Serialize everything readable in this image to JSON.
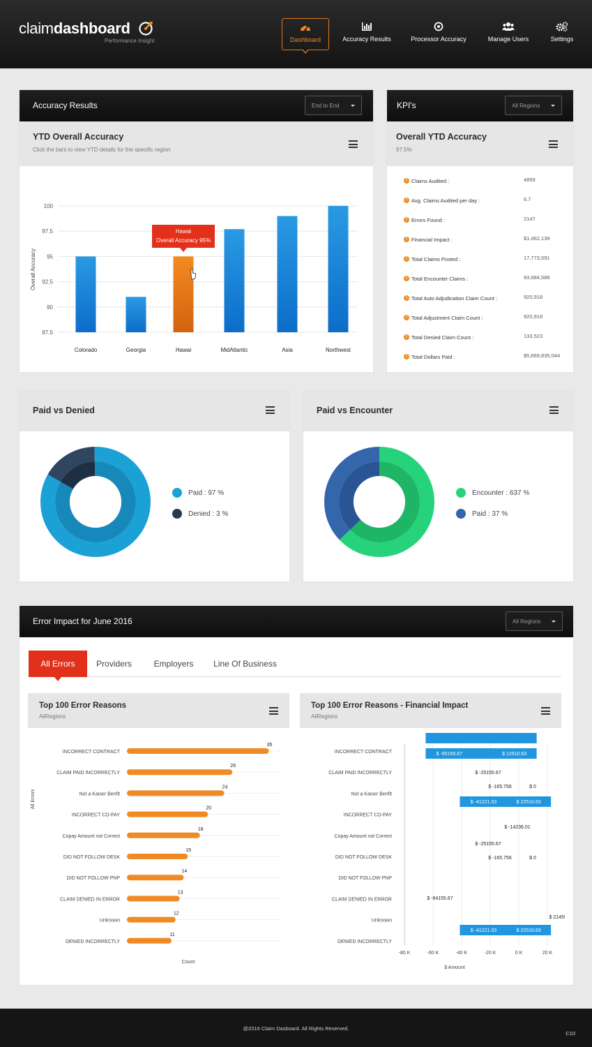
{
  "header": {
    "logo_light": "claim",
    "logo_bold": "dashboard",
    "logo_sub": "Performance Insight",
    "nav": [
      {
        "label": "Dashboard",
        "icon": "speedometer-icon",
        "active": true
      },
      {
        "label": "Accuracy Results",
        "icon": "bar-chart-icon"
      },
      {
        "label": "Processor Accuracy",
        "icon": "target-icon"
      },
      {
        "label": "Manage Users",
        "icon": "users-icon"
      },
      {
        "label": "Settings",
        "icon": "gears-icon"
      }
    ]
  },
  "accuracy": {
    "panel_title": "Accuracy Results",
    "filter": "End to End",
    "chart_title": "YTD Overall Accuracy",
    "chart_desc": "Click the bars to view YTD details for the specific region",
    "tooltip_line1": "Hawai",
    "tooltip_line2": "Overall Accuracy 95%"
  },
  "kpi": {
    "panel_title": "KPI's",
    "filter": "All Regions",
    "title": "Overall YTD Accuracy",
    "subtitle": "97.5%",
    "rows": [
      {
        "label": "Claims Audited :",
        "value": "4859"
      },
      {
        "label": "Avg. Claims Audited per day :",
        "value": "6.7"
      },
      {
        "label": "Errors Found :",
        "value": "2147"
      },
      {
        "label": "Financial Impact :",
        "value": "$1,462,139"
      },
      {
        "label": "Total Claims Posted :",
        "value": "17,773,591"
      },
      {
        "label": "Total Encounter Claims :",
        "value": "93,984,586"
      },
      {
        "label": "Total Auto Adjudication Claim Count :",
        "value": "920,918"
      },
      {
        "label": "Total Adjustment Claim Count :",
        "value": "920,918"
      },
      {
        "label": "Total Denied Claim Count :",
        "value": "133,523"
      },
      {
        "label": "Total Dollars Paid :",
        "value": "$5,669,835,044"
      }
    ]
  },
  "paid_denied": {
    "title": "Paid vs Denied",
    "legend": [
      {
        "label": "Paid : 97 %",
        "color": "#1ba1d6"
      },
      {
        "label": "Denied : 3 %",
        "color": "#263a52"
      }
    ]
  },
  "paid_encounter": {
    "title": "Paid vs Encounter",
    "legend": [
      {
        "label": "Encounter : 637 %",
        "color": "#27d37a"
      },
      {
        "label": "Paid : 37 %",
        "color": "#3466ab"
      }
    ]
  },
  "error_impact": {
    "panel_title": "Error Impact for June 2016",
    "filter": "All Regions",
    "tabs": [
      "All Errors",
      "Providers",
      "Employers",
      "Line Of Business"
    ],
    "left_title": "Top 100 Error Reasons",
    "left_sub": "AllRegions",
    "right_title": "Top 100 Error Reasons - Financial Impact",
    "right_sub": "AllRegions"
  },
  "footer": {
    "copyright": "@2016 Claim Dasboard. All Rights Reserved.",
    "code": "C10"
  },
  "chart_data": [
    {
      "type": "bar",
      "title": "YTD Overall Accuracy",
      "ylabel": "Overall Accuracy",
      "categories": [
        "Colorado",
        "Georgia",
        "Hawai",
        "MidAtlantic",
        "Asia",
        "Northwest"
      ],
      "values": [
        95,
        91,
        95,
        97.7,
        99,
        100
      ],
      "ylim": [
        87.5,
        100
      ],
      "yticks": [
        "87.5",
        "90",
        "92.5",
        "95",
        "97.5",
        "100"
      ],
      "highlight": "Hawai",
      "grid": true
    },
    {
      "type": "pie",
      "title": "Paid vs Denied",
      "labels": [
        "Paid",
        "Denied"
      ],
      "values": [
        97,
        3
      ]
    },
    {
      "type": "pie",
      "title": "Paid vs Encounter",
      "labels": [
        "Encounter",
        "Paid"
      ],
      "values": [
        637,
        37
      ]
    },
    {
      "type": "bar",
      "title": "Top 100 Error Reasons",
      "orientation": "horizontal",
      "xlabel": "Count",
      "ylabel": "All Errors",
      "categories": [
        "INCORRECT CONTRACT",
        "CLAIM PAID INCORRECTLY",
        "Not a Kaiser Benfit",
        "INCORRECT CO-PAY",
        "Copay Amount not Correct",
        "DID NOT FOLLOW DESK",
        "DID NOT FOLLOW PNP",
        "CLAIM DENIED IN ERROR",
        "Unknown",
        "DENIED INCORRECTLY"
      ],
      "values": [
        35,
        26,
        24,
        20,
        18,
        15,
        14,
        13,
        12,
        11
      ],
      "xlim": [
        0,
        38
      ]
    },
    {
      "type": "bar",
      "title": "Top 100 Error Reasons - Financial Impact",
      "orientation": "horizontal",
      "xlabel": "$ Amount",
      "categories": [
        "INCORRECT CONTRACT",
        "CLAIM PAID INCORRECTLY",
        "Not a Kaiser Benfit",
        "INCORRECT CO-PAY",
        "Copay Amount not Correct",
        "DID NOT FOLLOW DESK",
        "DID NOT FOLLOW PNP",
        "CLAIM DENIED IN ERROR",
        "Unknown",
        "DENIED INCORRECTLY"
      ],
      "xticks": [
        "-80 K",
        "-60 K",
        "-40 K",
        "-20 K",
        "0 K",
        "20 K"
      ],
      "xlim": [
        -80000,
        20000
      ],
      "items": [
        {
          "neg": -65155.67,
          "pos": 12510.63,
          "neg_label": "$ -65155.67",
          "pos_label": "$ 12510.63",
          "bar": true
        },
        {
          "neg": -25155.67,
          "neg_label": "$ -25155.67",
          "bar": false
        },
        {
          "neg": -165.756,
          "pos": 0,
          "neg_label": "$ -165.756",
          "pos_label": "$ 0",
          "bar": false
        },
        {
          "neg": -41221.03,
          "pos": 22510.63,
          "neg_label": "$ -41221.03",
          "pos_label": "$ 22510.63",
          "bar": true
        },
        {
          "neg": -14236.01,
          "neg_label": "$ -14236.01",
          "bar": false
        },
        {
          "neg": -25155.67,
          "neg_label": "$ -25155.67",
          "bar": false
        },
        {
          "neg": -165.756,
          "pos": 0,
          "neg_label": "$ -165.756",
          "pos_label": "$ 0",
          "bar": false
        },
        {
          "neg": -65155.67,
          "pos": 12510.63,
          "neg_label": "$ -65155.67",
          "pos_label": "$ 12510.63",
          "bar": true
        },
        {
          "neg": -64155.67,
          "neg_label": "$ -64155.67",
          "bar": false
        },
        {
          "pos": 21455.2,
          "pos_label": "$ 21455.20",
          "neg": -41221.03,
          "neg_label": "$ -41221.03",
          "pos2": 22510.63,
          "pos2_label": "$ 22510.63",
          "bar": true
        }
      ]
    }
  ]
}
